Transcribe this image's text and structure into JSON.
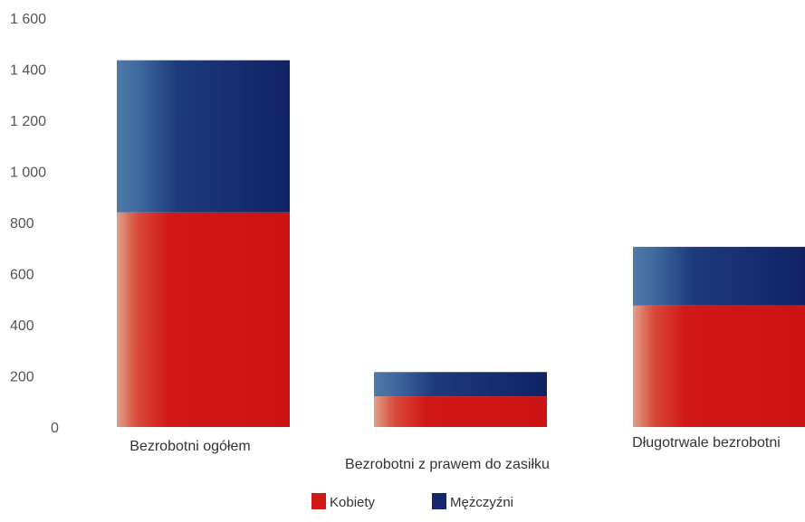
{
  "chart_data": {
    "type": "bar",
    "stacked": true,
    "categories": [
      "Bezrobotni ogółem",
      "Bezrobotni z prawem do zasiłku",
      "Długotrwale bezrobotni"
    ],
    "series": [
      {
        "name": "Kobiety",
        "color": "#d01818",
        "values": [
          840,
          120,
          475
        ]
      },
      {
        "name": "Mężczyźni",
        "color": "#14286e",
        "values": [
          595,
          95,
          230
        ]
      }
    ],
    "yticks": [
      "0",
      "200",
      "400",
      "600",
      "800",
      "1 000",
      "1 200",
      "1 400",
      "1 600"
    ],
    "ylim": [
      0,
      1600
    ],
    "legend_position": "bottom",
    "grid": false
  }
}
